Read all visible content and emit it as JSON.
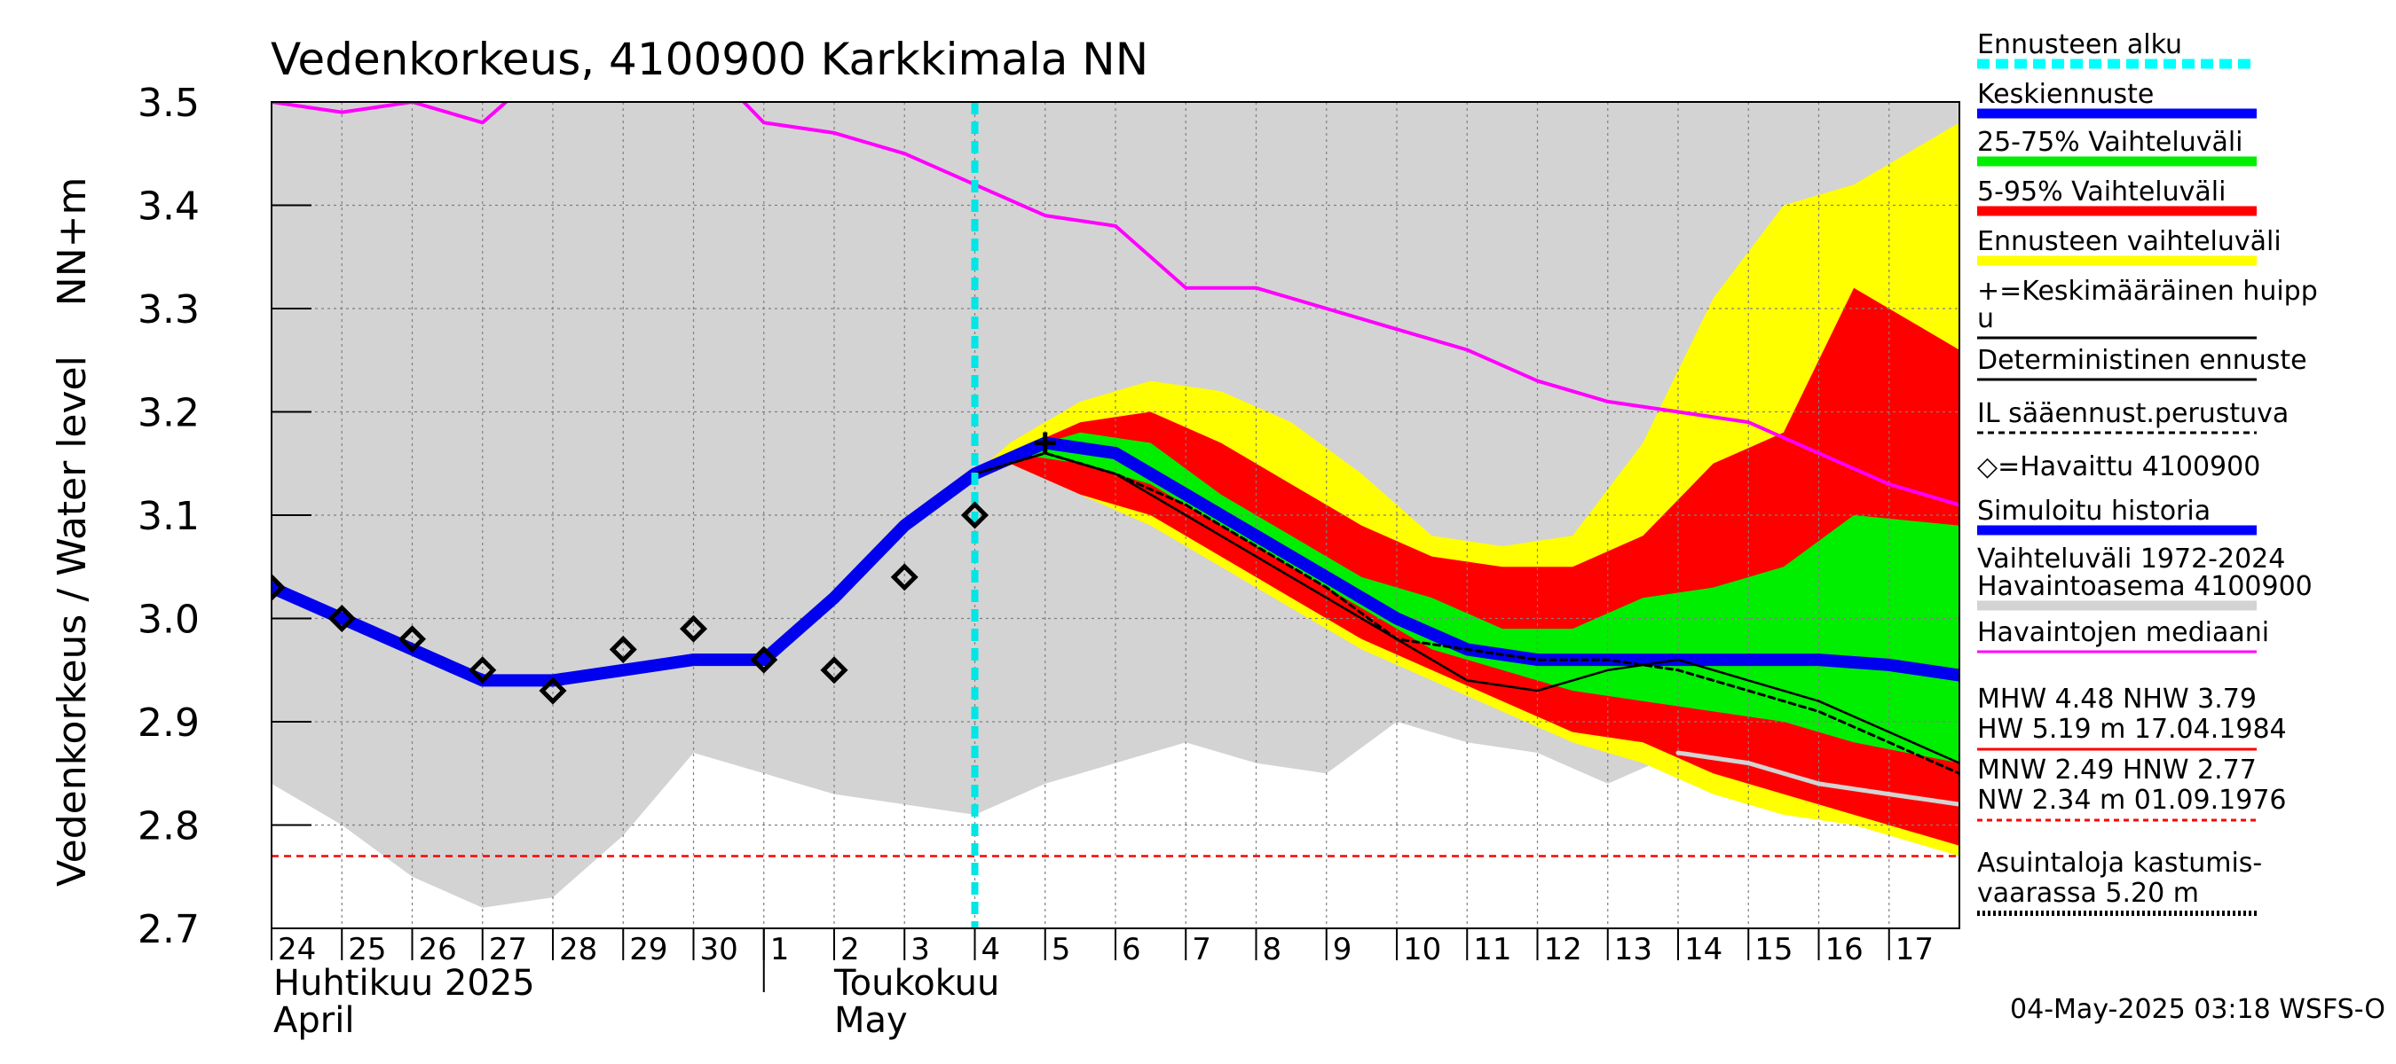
{
  "chart_data": {
    "type": "line",
    "title": "Vedenkorkeus, 4100900 Karkkimala NN",
    "ylabel": "Vedenkorkeus / Water level    NN+m",
    "ylim": [
      2.7,
      3.5
    ],
    "yticks": [
      "2.7",
      "2.8",
      "2.9",
      "3.0",
      "3.1",
      "3.2",
      "3.3",
      "3.4",
      "3.5"
    ],
    "xlim": [
      -0.5,
      23.5
    ],
    "day_labels": [
      "24",
      "25",
      "26",
      "27",
      "28",
      "29",
      "30",
      "1",
      "2",
      "3",
      "4",
      "5",
      "6",
      "7",
      "8",
      "9",
      "10",
      "11",
      "12",
      "13",
      "14",
      "15",
      "16",
      "17"
    ],
    "month_labels": [
      {
        "fi": "Huhtikuu  2025",
        "en": "April"
      },
      {
        "fi": "Toukokuu",
        "en": "May"
      }
    ],
    "forecast_start_x": 9.5,
    "threshold_level": 2.77,
    "series": [
      {
        "name": "Vaihteluväli 1972-2024",
        "kind": "band",
        "color": "#d3d3d3",
        "x": [
          -0.5,
          0.5,
          1.5,
          2.5,
          3.5,
          4.5,
          5.5,
          6.5,
          7.5,
          8.5,
          9.5,
          10.5,
          11.5,
          12.5,
          13.5,
          14.5,
          15.5,
          16.5,
          17.5,
          18.5,
          19.5,
          20.5,
          21.5,
          22.5,
          23.5
        ],
        "upper": [
          3.5,
          3.5,
          3.5,
          3.5,
          3.5,
          3.5,
          3.5,
          3.5,
          3.5,
          3.5,
          3.5,
          3.5,
          3.5,
          3.5,
          3.5,
          3.5,
          3.5,
          3.5,
          3.5,
          3.5,
          3.5,
          3.5,
          3.5,
          3.5,
          3.5
        ],
        "lower": [
          2.84,
          2.8,
          2.75,
          2.72,
          2.73,
          2.79,
          2.87,
          2.85,
          2.83,
          2.82,
          2.81,
          2.84,
          2.86,
          2.88,
          2.86,
          2.85,
          2.9,
          2.88,
          2.87,
          2.84,
          2.87,
          2.86,
          2.84,
          2.83,
          2.82
        ]
      },
      {
        "name": "Ennusteen vaihteluväli",
        "kind": "band",
        "color": "#ffff00",
        "x": [
          9.5,
          10,
          11,
          12,
          13,
          14,
          15,
          16,
          17,
          18,
          19,
          20,
          21,
          22,
          23.5
        ],
        "upper": [
          3.14,
          3.17,
          3.21,
          3.23,
          3.22,
          3.19,
          3.14,
          3.08,
          3.07,
          3.08,
          3.17,
          3.31,
          3.4,
          3.42,
          3.48
        ],
        "lower": [
          3.14,
          3.15,
          3.12,
          3.09,
          3.05,
          3.01,
          2.97,
          2.94,
          2.91,
          2.88,
          2.86,
          2.83,
          2.81,
          2.8,
          2.77
        ]
      },
      {
        "name": "5-95% Vaihteluväli",
        "kind": "band",
        "color": "#ff0000",
        "x": [
          9.5,
          10,
          11,
          12,
          13,
          14,
          15,
          16,
          17,
          18,
          19,
          20,
          21,
          22,
          23.5
        ],
        "upper": [
          3.14,
          3.16,
          3.19,
          3.2,
          3.17,
          3.13,
          3.09,
          3.06,
          3.05,
          3.05,
          3.08,
          3.15,
          3.18,
          3.32,
          3.26
        ],
        "lower": [
          3.14,
          3.15,
          3.12,
          3.1,
          3.06,
          3.02,
          2.98,
          2.95,
          2.92,
          2.89,
          2.88,
          2.85,
          2.83,
          2.81,
          2.78
        ]
      },
      {
        "name": "25-75% Vaihteluväli",
        "kind": "band",
        "color": "#00ee00",
        "x": [
          9.5,
          10,
          11,
          12,
          13,
          14,
          15,
          16,
          17,
          18,
          19,
          20,
          21,
          22,
          23.5
        ],
        "upper": [
          3.14,
          3.16,
          3.18,
          3.17,
          3.12,
          3.08,
          3.04,
          3.02,
          2.99,
          2.99,
          3.02,
          3.03,
          3.05,
          3.1,
          3.09
        ],
        "lower": [
          3.14,
          3.16,
          3.15,
          3.13,
          3.09,
          3.05,
          3.01,
          2.97,
          2.95,
          2.93,
          2.92,
          2.91,
          2.9,
          2.88,
          2.86
        ]
      },
      {
        "name": "Havaintojen mediaani",
        "kind": "line",
        "color": "#ff00ff",
        "x": [
          -0.5,
          0.5,
          1.5,
          2.5,
          3.5,
          4.5,
          5.5,
          6.5,
          7.5,
          8.5,
          9.5,
          10.5,
          11.5,
          12.5,
          13.5,
          14.5,
          15.5,
          16.5,
          17.5,
          18.5,
          19.5,
          20.5,
          21.5,
          22.5,
          23.5
        ],
        "values": [
          3.5,
          3.49,
          3.5,
          3.48,
          3.54,
          3.55,
          3.55,
          3.48,
          3.47,
          3.45,
          3.42,
          3.39,
          3.38,
          3.32,
          3.32,
          3.3,
          3.28,
          3.26,
          3.23,
          3.21,
          3.2,
          3.19,
          3.16,
          3.13,
          3.11
        ]
      },
      {
        "name": "Simuloitu historia",
        "kind": "line",
        "color": "#0000ee",
        "x": [
          -0.5,
          0.5,
          1.5,
          2.5,
          3.5,
          4.5,
          5.5,
          6.5,
          7.5,
          8.5,
          9.5,
          10.5,
          11.5,
          12.5,
          13.5,
          14.5,
          15.5,
          16.5,
          17.5,
          18.5,
          19.5,
          20.5,
          21.5,
          22.5,
          23.5
        ],
        "values": [
          3.03,
          3.0,
          2.97,
          2.94,
          2.94,
          2.95,
          2.96,
          2.96,
          3.02,
          3.09,
          3.14,
          3.17,
          3.16,
          3.12,
          3.08,
          3.04,
          3.0,
          2.97,
          2.96,
          2.96,
          2.96,
          2.96,
          2.96,
          2.955,
          2.945
        ]
      },
      {
        "name": "Deterministinen ennuste",
        "kind": "line",
        "color": "#000000",
        "x": [
          9.5,
          10.5,
          11.5,
          12.5,
          13.5,
          14.5,
          15.5,
          16.5,
          17.5,
          18.5,
          19.5,
          20.5,
          21.5,
          22.5,
          23.5
        ],
        "values": [
          3.14,
          3.16,
          3.14,
          3.1,
          3.06,
          3.02,
          2.98,
          2.94,
          2.93,
          2.95,
          2.96,
          2.94,
          2.92,
          2.89,
          2.86
        ]
      },
      {
        "name": "IL sääennust.perustuva",
        "kind": "line",
        "color": "#000000",
        "x": [
          9.5,
          10.5,
          11.5,
          12.5,
          13.5,
          14.5,
          15.5,
          16.5,
          17.5,
          18.5,
          19.5,
          20.5,
          21.5,
          22.5,
          23.5
        ],
        "values": [
          3.14,
          3.16,
          3.14,
          3.11,
          3.07,
          3.03,
          2.98,
          2.97,
          2.96,
          2.96,
          2.95,
          2.93,
          2.91,
          2.88,
          2.85
        ]
      },
      {
        "name": "Havaittu 4100900",
        "kind": "points",
        "color": "#000000",
        "x": [
          -0.5,
          0.5,
          1.5,
          2.5,
          3.5,
          4.5,
          5.5,
          6.5,
          7.5,
          8.5,
          9.5
        ],
        "values": [
          3.03,
          3.0,
          2.98,
          2.95,
          2.93,
          2.97,
          2.99,
          2.96,
          2.95,
          3.04,
          3.1
        ]
      },
      {
        "name": "Keskimääräinen huippu",
        "kind": "marker",
        "color": "#000000",
        "x": [
          10.5
        ],
        "values": [
          3.17
        ]
      },
      {
        "name": "Low line",
        "kind": "line",
        "color": "#d3d3d3",
        "x": [
          19.5,
          20.5,
          21.5,
          22.5,
          23.5
        ],
        "values": [
          2.87,
          2.86,
          2.84,
          2.83,
          2.82
        ]
      }
    ]
  },
  "legend": {
    "items": [
      {
        "label": "Ennusteen alku",
        "color": "#00ffff",
        "style": "dashed-thick"
      },
      {
        "label": "Keskiennuste",
        "color": "#0000ff",
        "style": "thick"
      },
      {
        "label": "25-75% Vaihteluväli",
        "color": "#00ee00",
        "style": "thick"
      },
      {
        "label": "5-95% Vaihteluväli",
        "color": "#ff0000",
        "style": "thick"
      },
      {
        "label": "Ennusteen vaihteluväli",
        "color": "#ffff00",
        "style": "thick"
      },
      {
        "label": "+=Keskimääräinen huipp",
        "label2": "u",
        "color": "#000000",
        "style": "thin"
      },
      {
        "label": "Deterministinen ennuste",
        "color": "#000000",
        "style": "thin"
      },
      {
        "label": "IL sääennust.perustuva",
        "color": "#000000",
        "style": "dashed"
      },
      {
        "label": "◇=Havaittu 4100900",
        "color": "#000000",
        "style": "none"
      },
      {
        "label": "Simuloitu historia",
        "color": "#0000ff",
        "style": "thick"
      },
      {
        "label": "Vaihteluväli 1972-2024",
        "label2": " Havaintoasema 4100900",
        "color": "#d3d3d3",
        "style": "thick"
      },
      {
        "label": "Havaintojen mediaani",
        "color": "#ff00ff",
        "style": "thin"
      }
    ],
    "stats": [
      {
        "line1": "MHW   4.48 NHW   3.79",
        "line2": "HW   5.19 m 17.04.1984",
        "color": "#ff0000",
        "style": "thin"
      },
      {
        "line1": "MNW   2.49 HNW   2.77",
        "line2": "NW   2.34 m 01.09.1976",
        "color": "#ff0000",
        "style": "dashed"
      },
      {
        "line1": "Asuintaloja kastumis-",
        "line2": "vaarassa 5.20 m",
        "color": "#000000",
        "style": "dotted"
      }
    ]
  },
  "footer": "04-May-2025 03:18 WSFS-O"
}
